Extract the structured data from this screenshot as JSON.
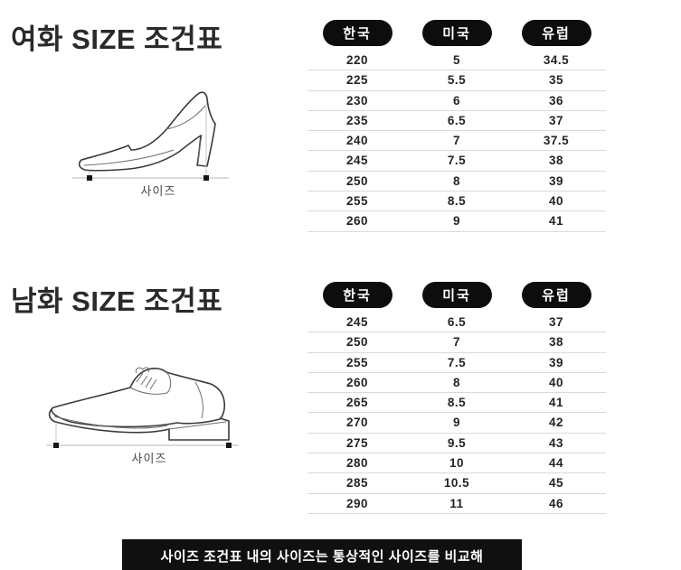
{
  "colors": {
    "pill_bg": "#0d0d0d",
    "pill_text": "#ffffff",
    "row_divider": "#dadada",
    "table_text": "#242424",
    "footer_bg": "#101010",
    "footer_text": "#ffffff"
  },
  "women": {
    "title": "여화 SIZE 조건표",
    "size_label": "사이즈",
    "shoe_icon": "high-heel-shoe-line-drawing",
    "table": {
      "headers": [
        "한국",
        "미국",
        "유럽"
      ],
      "rows": [
        [
          "220",
          "5",
          "34.5"
        ],
        [
          "225",
          "5.5",
          "35"
        ],
        [
          "230",
          "6",
          "36"
        ],
        [
          "235",
          "6.5",
          "37"
        ],
        [
          "240",
          "7",
          "37.5"
        ],
        [
          "245",
          "7.5",
          "38"
        ],
        [
          "250",
          "8",
          "39"
        ],
        [
          "255",
          "8.5",
          "40"
        ],
        [
          "260",
          "9",
          "41"
        ]
      ]
    }
  },
  "men": {
    "title": "남화 SIZE 조건표",
    "size_label": "사이즈",
    "shoe_icon": "dress-shoe-line-drawing",
    "table": {
      "headers": [
        "한국",
        "미국",
        "유럽"
      ],
      "rows": [
        [
          "245",
          "6.5",
          "37"
        ],
        [
          "250",
          "7",
          "38"
        ],
        [
          "255",
          "7.5",
          "39"
        ],
        [
          "260",
          "8",
          "40"
        ],
        [
          "265",
          "8.5",
          "41"
        ],
        [
          "270",
          "9",
          "42"
        ],
        [
          "275",
          "9.5",
          "43"
        ],
        [
          "280",
          "10",
          "44"
        ],
        [
          "285",
          "10.5",
          "45"
        ],
        [
          "290",
          "11",
          "46"
        ]
      ]
    }
  },
  "footer": {
    "note": "사이즈 조건표 내의 사이즈는 통상적인 사이즈를 비교해"
  }
}
